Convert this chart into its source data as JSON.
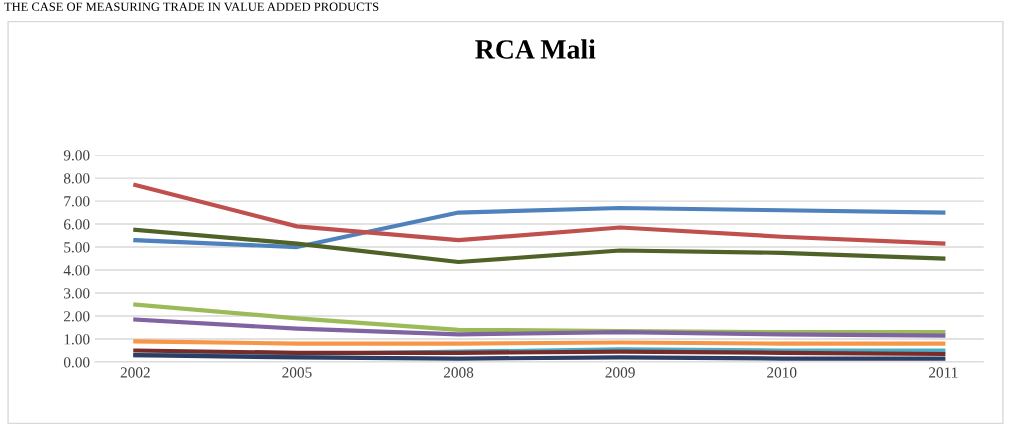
{
  "chart_data": {
    "type": "line",
    "title": "RCA Mali",
    "annotations": [
      "THE CASE OF MEASURING TRADE IN VALUE ADDED PRODUCTS"
    ],
    "categories": [
      "2002",
      "2005",
      "2008",
      "2009",
      "2010",
      "2011"
    ],
    "ylim": [
      0,
      9
    ],
    "yticks": [
      {
        "value": 0,
        "label": "0.00"
      },
      {
        "value": 1,
        "label": "1.00"
      },
      {
        "value": 2,
        "label": "2.00"
      },
      {
        "value": 3,
        "label": "3.00"
      },
      {
        "value": 4,
        "label": "4.00"
      },
      {
        "value": 5,
        "label": "5.00"
      },
      {
        "value": 6,
        "label": "6.00"
      },
      {
        "value": 7,
        "label": "7.00"
      },
      {
        "value": 8,
        "label": "8.00"
      },
      {
        "value": 9,
        "label": "9.00"
      }
    ],
    "grid": "y",
    "series": [
      {
        "color": "#4f81bd",
        "values": [
          5.3,
          5.0,
          6.5,
          6.7,
          6.6,
          6.5
        ]
      },
      {
        "color": "#c0504d",
        "values": [
          7.7,
          5.9,
          5.3,
          5.85,
          5.45,
          5.15
        ]
      },
      {
        "color": "#4f6228",
        "values": [
          5.75,
          5.15,
          4.35,
          4.85,
          4.75,
          4.5
        ]
      },
      {
        "color": "#9bbb59",
        "values": [
          2.5,
          1.9,
          1.4,
          1.35,
          1.3,
          1.3
        ]
      },
      {
        "color": "#8064a2",
        "values": [
          1.85,
          1.45,
          1.2,
          1.3,
          1.2,
          1.15
        ]
      },
      {
        "color": "#f79646",
        "values": [
          0.9,
          0.8,
          0.8,
          0.85,
          0.8,
          0.8
        ]
      },
      {
        "color": "#4bacc6",
        "values": [
          0.3,
          0.35,
          0.45,
          0.55,
          0.5,
          0.5
        ]
      },
      {
        "color": "#772c2a",
        "values": [
          0.5,
          0.4,
          0.4,
          0.45,
          0.4,
          0.35
        ]
      },
      {
        "color": "#2c3e66",
        "values": [
          0.3,
          0.2,
          0.15,
          0.2,
          0.15,
          0.15
        ]
      }
    ]
  }
}
